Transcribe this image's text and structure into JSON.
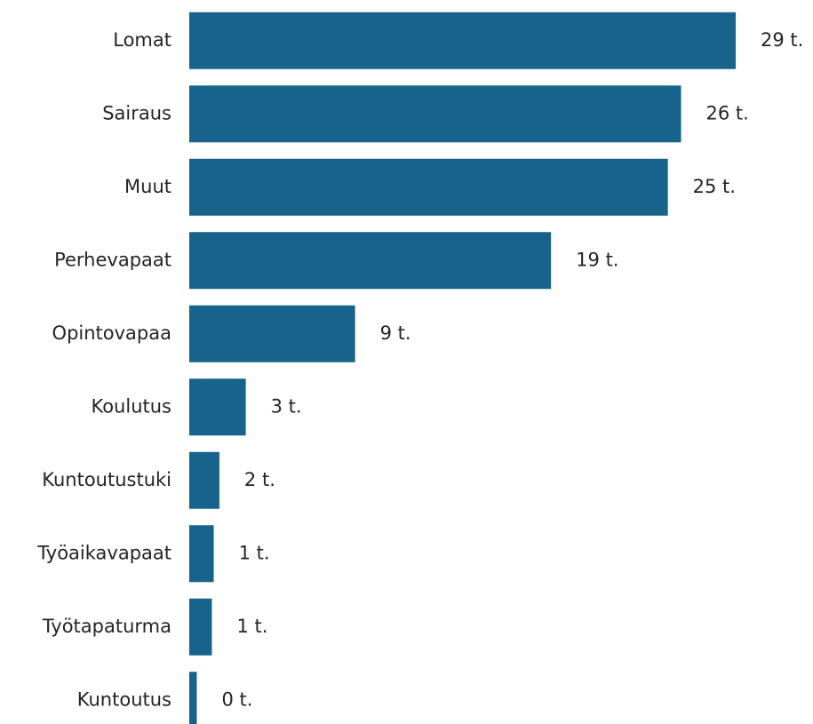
{
  "chart_data": {
    "type": "bar",
    "orientation": "horizontal",
    "categories": [
      "Lomat",
      "Sairaus",
      "Muut",
      "Perhevapaat",
      "Opintovapaa",
      "Koulutus",
      "Kuntoutustuki",
      "Työaikavapaat",
      "Työtapaturma",
      "Kuntoutus"
    ],
    "values": [
      29,
      26.1,
      25.4,
      19.2,
      8.8,
      3.0,
      1.6,
      1.3,
      1.2,
      0.4
    ],
    "value_labels": [
      "29 t.",
      "26 t.",
      "25 t.",
      "19 t.",
      "9 t.",
      "3 t.",
      "2 t.",
      "1 t.",
      "1 t.",
      "0 t."
    ],
    "color": "#17638b",
    "xlim": [
      0,
      29
    ]
  }
}
